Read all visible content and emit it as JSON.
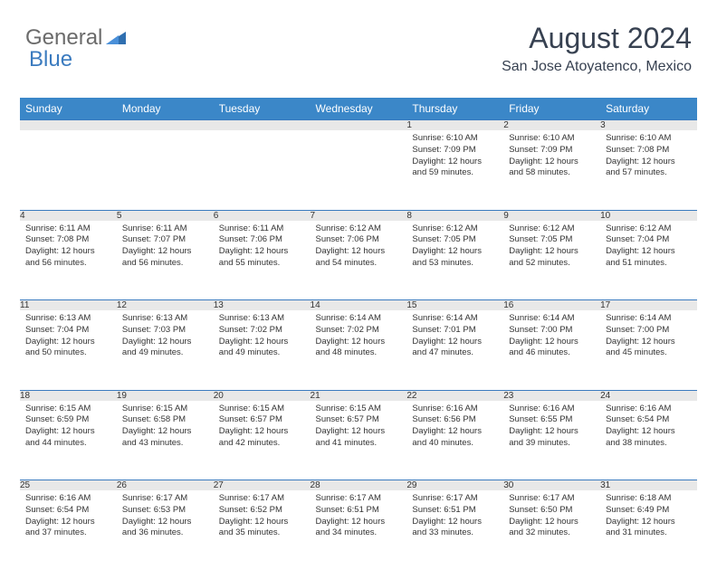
{
  "logo": {
    "general": "General",
    "blue": "Blue"
  },
  "header": {
    "month_title": "August 2024",
    "location": "San Jose Atoyatenco, Mexico"
  },
  "style": {
    "header_bg": "#3b87c8",
    "header_text": "#ffffff",
    "daynum_bg": "#e8e8e8",
    "border_color": "#3b7bbf",
    "body_text": "#333333",
    "page_bg": "#ffffff",
    "logo_gray": "#6b6b6b",
    "logo_blue": "#3b7bbf",
    "title_fontsize": 32,
    "location_fontsize": 16,
    "th_fontsize": 12,
    "cell_fontsize": 9.5
  },
  "weekdays": [
    "Sunday",
    "Monday",
    "Tuesday",
    "Wednesday",
    "Thursday",
    "Friday",
    "Saturday"
  ],
  "weeks": [
    [
      null,
      null,
      null,
      null,
      {
        "n": "1",
        "sr": "6:10 AM",
        "ss": "7:09 PM",
        "dl": "12 hours and 59 minutes."
      },
      {
        "n": "2",
        "sr": "6:10 AM",
        "ss": "7:09 PM",
        "dl": "12 hours and 58 minutes."
      },
      {
        "n": "3",
        "sr": "6:10 AM",
        "ss": "7:08 PM",
        "dl": "12 hours and 57 minutes."
      }
    ],
    [
      {
        "n": "4",
        "sr": "6:11 AM",
        "ss": "7:08 PM",
        "dl": "12 hours and 56 minutes."
      },
      {
        "n": "5",
        "sr": "6:11 AM",
        "ss": "7:07 PM",
        "dl": "12 hours and 56 minutes."
      },
      {
        "n": "6",
        "sr": "6:11 AM",
        "ss": "7:06 PM",
        "dl": "12 hours and 55 minutes."
      },
      {
        "n": "7",
        "sr": "6:12 AM",
        "ss": "7:06 PM",
        "dl": "12 hours and 54 minutes."
      },
      {
        "n": "8",
        "sr": "6:12 AM",
        "ss": "7:05 PM",
        "dl": "12 hours and 53 minutes."
      },
      {
        "n": "9",
        "sr": "6:12 AM",
        "ss": "7:05 PM",
        "dl": "12 hours and 52 minutes."
      },
      {
        "n": "10",
        "sr": "6:12 AM",
        "ss": "7:04 PM",
        "dl": "12 hours and 51 minutes."
      }
    ],
    [
      {
        "n": "11",
        "sr": "6:13 AM",
        "ss": "7:04 PM",
        "dl": "12 hours and 50 minutes."
      },
      {
        "n": "12",
        "sr": "6:13 AM",
        "ss": "7:03 PM",
        "dl": "12 hours and 49 minutes."
      },
      {
        "n": "13",
        "sr": "6:13 AM",
        "ss": "7:02 PM",
        "dl": "12 hours and 49 minutes."
      },
      {
        "n": "14",
        "sr": "6:14 AM",
        "ss": "7:02 PM",
        "dl": "12 hours and 48 minutes."
      },
      {
        "n": "15",
        "sr": "6:14 AM",
        "ss": "7:01 PM",
        "dl": "12 hours and 47 minutes."
      },
      {
        "n": "16",
        "sr": "6:14 AM",
        "ss": "7:00 PM",
        "dl": "12 hours and 46 minutes."
      },
      {
        "n": "17",
        "sr": "6:14 AM",
        "ss": "7:00 PM",
        "dl": "12 hours and 45 minutes."
      }
    ],
    [
      {
        "n": "18",
        "sr": "6:15 AM",
        "ss": "6:59 PM",
        "dl": "12 hours and 44 minutes."
      },
      {
        "n": "19",
        "sr": "6:15 AM",
        "ss": "6:58 PM",
        "dl": "12 hours and 43 minutes."
      },
      {
        "n": "20",
        "sr": "6:15 AM",
        "ss": "6:57 PM",
        "dl": "12 hours and 42 minutes."
      },
      {
        "n": "21",
        "sr": "6:15 AM",
        "ss": "6:57 PM",
        "dl": "12 hours and 41 minutes."
      },
      {
        "n": "22",
        "sr": "6:16 AM",
        "ss": "6:56 PM",
        "dl": "12 hours and 40 minutes."
      },
      {
        "n": "23",
        "sr": "6:16 AM",
        "ss": "6:55 PM",
        "dl": "12 hours and 39 minutes."
      },
      {
        "n": "24",
        "sr": "6:16 AM",
        "ss": "6:54 PM",
        "dl": "12 hours and 38 minutes."
      }
    ],
    [
      {
        "n": "25",
        "sr": "6:16 AM",
        "ss": "6:54 PM",
        "dl": "12 hours and 37 minutes."
      },
      {
        "n": "26",
        "sr": "6:17 AM",
        "ss": "6:53 PM",
        "dl": "12 hours and 36 minutes."
      },
      {
        "n": "27",
        "sr": "6:17 AM",
        "ss": "6:52 PM",
        "dl": "12 hours and 35 minutes."
      },
      {
        "n": "28",
        "sr": "6:17 AM",
        "ss": "6:51 PM",
        "dl": "12 hours and 34 minutes."
      },
      {
        "n": "29",
        "sr": "6:17 AM",
        "ss": "6:51 PM",
        "dl": "12 hours and 33 minutes."
      },
      {
        "n": "30",
        "sr": "6:17 AM",
        "ss": "6:50 PM",
        "dl": "12 hours and 32 minutes."
      },
      {
        "n": "31",
        "sr": "6:18 AM",
        "ss": "6:49 PM",
        "dl": "12 hours and 31 minutes."
      }
    ]
  ],
  "labels": {
    "sunrise": "Sunrise:",
    "sunset": "Sunset:",
    "daylight": "Daylight:"
  }
}
